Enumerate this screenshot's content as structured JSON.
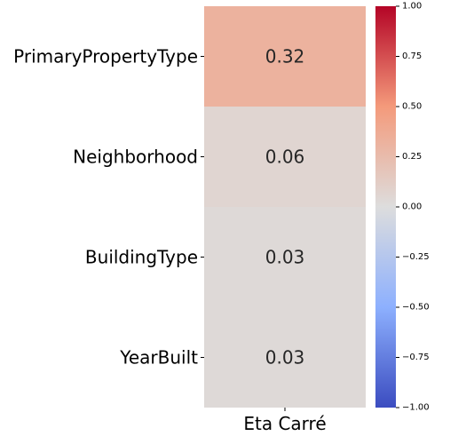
{
  "chart_data": {
    "type": "heatmap",
    "rows": [
      "PrimaryPropertyType",
      "Neighborhood",
      "BuildingType",
      "YearBuilt"
    ],
    "columns": [
      "Eta Carré"
    ],
    "values": [
      [
        0.32
      ],
      [
        0.06
      ],
      [
        0.03
      ],
      [
        0.03
      ]
    ],
    "value_labels": [
      "0.32",
      "0.06",
      "0.03",
      "0.03"
    ],
    "colormap": "coolwarm",
    "vmin": -1.0,
    "vmax": 1.0,
    "colorbar": {
      "ticks": [
        1.0,
        0.75,
        0.5,
        0.25,
        0.0,
        -0.25,
        -0.5,
        -0.75,
        -1.0
      ],
      "tick_labels": [
        "1.00",
        "0.75",
        "0.50",
        "0.25",
        "0.00",
        "−0.25",
        "−0.50",
        "−0.75",
        "−1.00"
      ]
    },
    "colorbar_colors": {
      "min": "#3b4cc0",
      "low_mid": "#8db0fe",
      "mid": "#dddddd",
      "high_mid": "#f49a7b",
      "max": "#b40426"
    }
  }
}
